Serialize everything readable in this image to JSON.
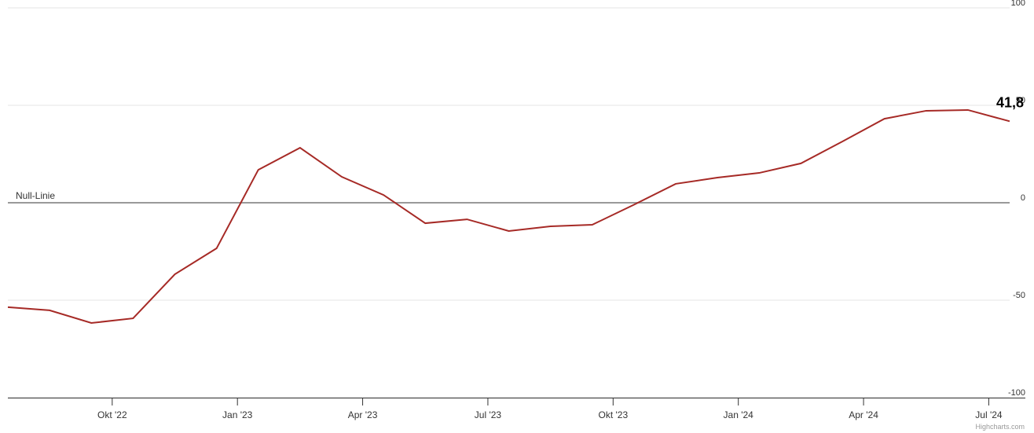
{
  "chart_data": {
    "type": "line",
    "x": [
      "2022-07",
      "2022-08",
      "2022-09",
      "2022-10",
      "2022-11",
      "2022-12",
      "2023-01",
      "2023-02",
      "2023-03",
      "2023-04",
      "2023-05",
      "2023-06",
      "2023-07",
      "2023-08",
      "2023-09",
      "2023-10",
      "2023-11",
      "2023-12",
      "2024-01",
      "2024-02",
      "2024-03",
      "2024-04",
      "2024-05",
      "2024-06",
      "2024-07"
    ],
    "series": [
      {
        "color": "#a62a26",
        "values": [
          -53.6,
          -55.2,
          -61.7,
          -59.3,
          -36.7,
          -23.4,
          16.9,
          28.2,
          13.3,
          4.0,
          -10.5,
          -8.5,
          -14.5,
          -12.1,
          -11.3,
          -1.0,
          9.7,
          12.9,
          15.3,
          20.2,
          31.5,
          43.1,
          47.2,
          47.6,
          41.8
        ],
        "value_labels": [
          null,
          null,
          null,
          null,
          null,
          null,
          null,
          null,
          null,
          null,
          null,
          null,
          null,
          null,
          null,
          null,
          null,
          null,
          null,
          null,
          null,
          null,
          null,
          null,
          "41,8"
        ]
      }
    ],
    "xlim": [
      "2022-07",
      "2024-07"
    ],
    "xticks": [
      {
        "value": "2022-10",
        "label": "Okt '22"
      },
      {
        "value": "2023-01",
        "label": "Jan '23"
      },
      {
        "value": "2023-04",
        "label": "Apr '23"
      },
      {
        "value": "2023-07",
        "label": "Jul '23"
      },
      {
        "value": "2023-10",
        "label": "Okt '23"
      },
      {
        "value": "2024-01",
        "label": "Jan '24"
      },
      {
        "value": "2024-04",
        "label": "Apr '24"
      },
      {
        "value": "2024-07",
        "label": "Jul '24"
      }
    ],
    "ylim": [
      -100,
      100
    ],
    "yticks": [
      100,
      50,
      0,
      -50,
      -100
    ],
    "grid": true,
    "plot_lines": [
      {
        "value": 0,
        "label": "Null-Linie"
      }
    ],
    "credits": "Highcharts.com"
  }
}
